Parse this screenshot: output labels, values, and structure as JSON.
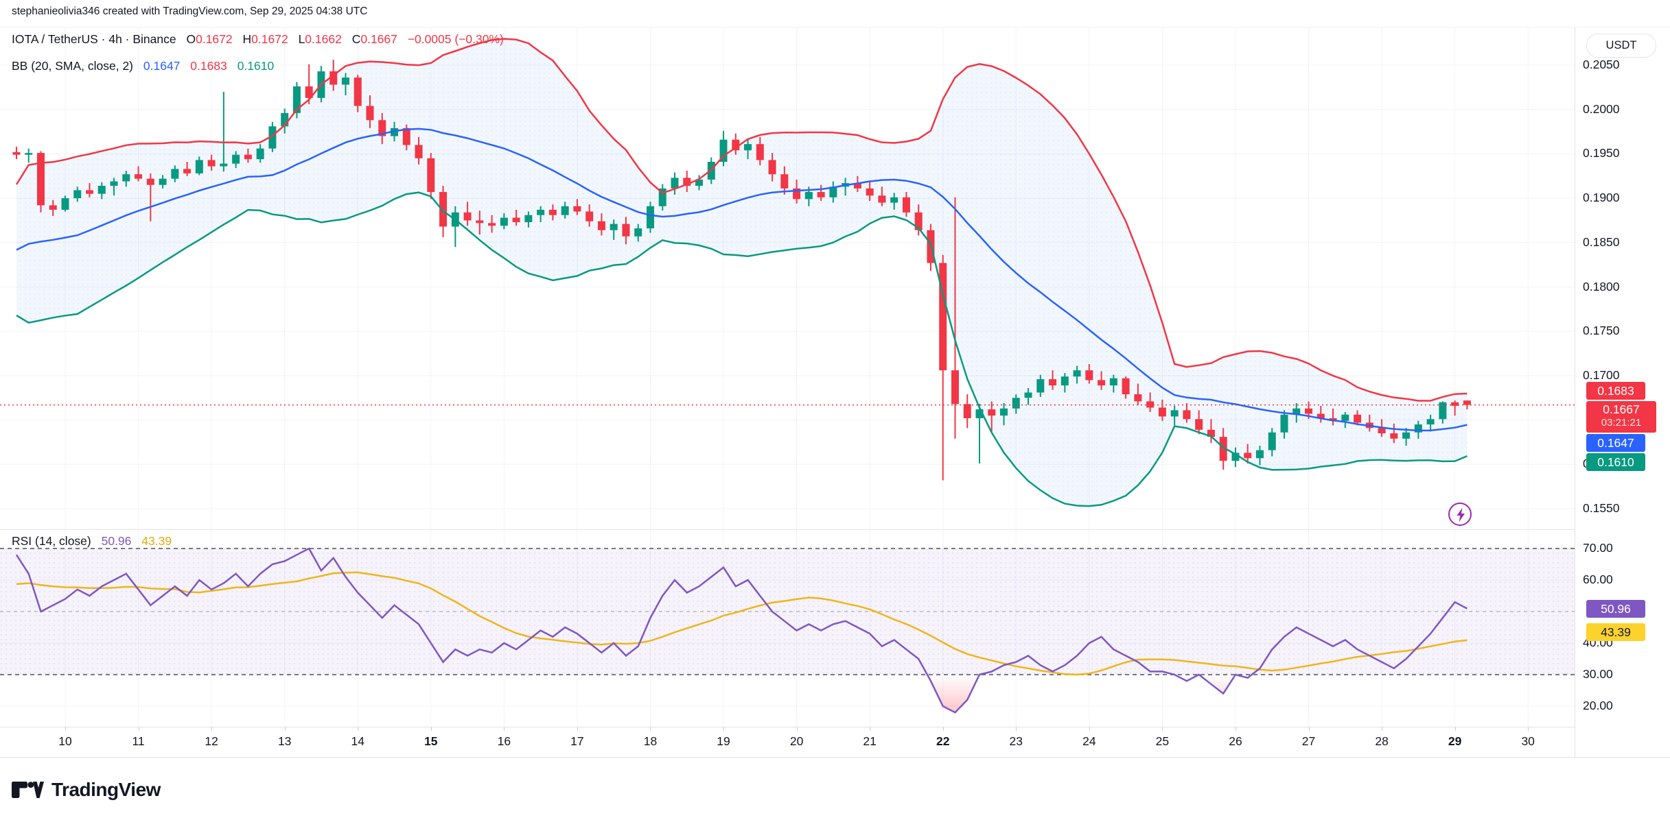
{
  "credit": "stephanieolivia346 created with TradingView.com, Sep 29, 2025 04:38 UTC",
  "header": {
    "title": "IOTA / TetherUS · 4h · Binance",
    "o_label": "O",
    "o": "0.1672",
    "h_label": "H",
    "h": "0.1672",
    "l_label": "L",
    "l": "0.1662",
    "c_label": "C",
    "c": "0.1667",
    "change": "−0.0005 (−0.30%)"
  },
  "indicator": {
    "name": "BB (20, SMA, close, 2)",
    "basis": "0.1647",
    "upper": "0.1683",
    "lower": "0.1610"
  },
  "rsi_legend": {
    "name": "RSI (14, close)",
    "value": "50.96",
    "ma": "43.39"
  },
  "logo": {
    "text": "TradingView"
  },
  "axis": {
    "currency": "USDT",
    "price_ticks": [
      {
        "label": "0.2050",
        "value": 0.205
      },
      {
        "label": "0.2000",
        "value": 0.2
      },
      {
        "label": "0.1950",
        "value": 0.195
      },
      {
        "label": "0.1900",
        "value": 0.19
      },
      {
        "label": "0.1850",
        "value": 0.185
      },
      {
        "label": "0.1800",
        "value": 0.18
      },
      {
        "label": "0.1750",
        "value": 0.175
      },
      {
        "label": "0.1700",
        "value": 0.17
      },
      {
        "label": "0.1600",
        "value": 0.16
      },
      {
        "label": "0.1550",
        "value": 0.155
      }
    ],
    "time_ticks": [
      {
        "label": "10",
        "bold": false
      },
      {
        "label": "11",
        "bold": false
      },
      {
        "label": "12",
        "bold": false
      },
      {
        "label": "13",
        "bold": false
      },
      {
        "label": "14",
        "bold": false
      },
      {
        "label": "15",
        "bold": true
      },
      {
        "label": "16",
        "bold": false
      },
      {
        "label": "17",
        "bold": false
      },
      {
        "label": "18",
        "bold": false
      },
      {
        "label": "19",
        "bold": false
      },
      {
        "label": "20",
        "bold": false
      },
      {
        "label": "21",
        "bold": false
      },
      {
        "label": "22",
        "bold": true
      },
      {
        "label": "23",
        "bold": false
      },
      {
        "label": "24",
        "bold": false
      },
      {
        "label": "25",
        "bold": false
      },
      {
        "label": "26",
        "bold": false
      },
      {
        "label": "27",
        "bold": false
      },
      {
        "label": "28",
        "bold": false
      },
      {
        "label": "29",
        "bold": true
      },
      {
        "label": "30",
        "bold": false
      }
    ],
    "badges": {
      "upper": {
        "label": "0.1683",
        "value": 0.1683
      },
      "last": {
        "price": "0.1667",
        "value": 0.1667,
        "countdown": "03:21:21"
      },
      "basis": {
        "label": "0.1647",
        "value": 0.1647
      },
      "lower": {
        "label": "0.1610",
        "value": 0.161
      }
    }
  },
  "rsi_axis": {
    "ticks": [
      {
        "label": "70.00",
        "value": 70
      },
      {
        "label": "60.00",
        "value": 60
      },
      {
        "label": "40.00",
        "value": 40
      },
      {
        "label": "30.00",
        "value": 30
      },
      {
        "label": "20.00",
        "value": 20
      }
    ],
    "badges": {
      "value": {
        "label": "50.96",
        "num": 50.96
      },
      "ma": {
        "label": "43.39",
        "num": 43.39
      }
    }
  },
  "colors": {
    "up": "#089981",
    "down": "#F23645",
    "basis": "#2962FF",
    "upper_band": "#F23645",
    "lower_band": "#089981",
    "bb_fill": "rgba(33,119,244,0.06)",
    "rsi_line": "#7E57C2",
    "rsi_ma": "#F0B518",
    "rsi_fill": "rgba(126,87,194,0.07)",
    "badge_purple": "#7E57C2",
    "badge_yellow": "#FCD32D",
    "grid": "#F0F3FA",
    "border": "#E0E3EB",
    "text": "#131722",
    "bolt": "#9C27B0",
    "oversold": "#F7525F"
  },
  "chart_data": {
    "type": "candlestick",
    "title": "IOTA / TetherUS · 4h · Binance",
    "price_scale": 0.0001,
    "x_axis": {
      "unit": "day of September 2025",
      "labels": [
        "10",
        "11",
        "12",
        "13",
        "14",
        "15",
        "16",
        "17",
        "18",
        "19",
        "20",
        "21",
        "22",
        "23",
        "24",
        "25",
        "26",
        "27",
        "28",
        "29",
        "30"
      ],
      "bold_labels": [
        "15",
        "22",
        "29"
      ]
    },
    "panes": [
      {
        "name": "price",
        "type": "candlestick_with_bollinger",
        "ylim": [
          0.1527,
          0.2099
        ],
        "yticks": [
          0.205,
          0.2,
          0.195,
          0.19,
          0.185,
          0.18,
          0.175,
          0.17,
          0.165,
          0.16,
          0.155
        ],
        "last_price": 0.1667,
        "candles_per_day": 6,
        "tick_anchor_index": 4,
        "bb": {
          "length": 20,
          "source": "close",
          "mult": 2,
          "basis_last": 0.1647,
          "upper_last": 0.1683,
          "lower_last": 0.161
        },
        "pre_closes": [
          1796,
          1801,
          1807,
          1813,
          1819,
          1825,
          1831,
          1837,
          1843,
          1849,
          1855,
          1861,
          1867,
          1873
        ],
        "candles": [
          [
            1952,
            1958,
            1944,
            1949
          ],
          [
            1949,
            1956,
            1940,
            1951
          ],
          [
            1951,
            1953,
            1884,
            1892
          ],
          [
            1892,
            1898,
            1880,
            1887
          ],
          [
            1887,
            1903,
            1885,
            1900
          ],
          [
            1900,
            1913,
            1896,
            1909
          ],
          [
            1909,
            1917,
            1901,
            1905
          ],
          [
            1905,
            1918,
            1899,
            1914
          ],
          [
            1914,
            1923,
            1903,
            1919
          ],
          [
            1919,
            1931,
            1913,
            1927
          ],
          [
            1927,
            1936,
            1919,
            1922
          ],
          [
            1922,
            1928,
            1874,
            1915
          ],
          [
            1915,
            1926,
            1911,
            1922
          ],
          [
            1922,
            1937,
            1918,
            1933
          ],
          [
            1933,
            1941,
            1925,
            1928
          ],
          [
            1928,
            1947,
            1926,
            1943
          ],
          [
            1943,
            1949,
            1931,
            1936
          ],
          [
            1936,
            2020,
            1930,
            1939
          ],
          [
            1939,
            1953,
            1934,
            1949
          ],
          [
            1949,
            1956,
            1940,
            1944
          ],
          [
            1944,
            1961,
            1940,
            1956
          ],
          [
            1956,
            1986,
            1952,
            1981
          ],
          [
            1981,
            2001,
            1973,
            1996
          ],
          [
            1996,
            2031,
            1990,
            2026
          ],
          [
            2026,
            2051,
            2006,
            2013
          ],
          [
            2013,
            2049,
            2008,
            2043
          ],
          [
            2043,
            2056,
            2021,
            2028
          ],
          [
            2028,
            2041,
            2016,
            2036
          ],
          [
            2036,
            2039,
            1997,
            2004
          ],
          [
            2004,
            2016,
            1979,
            1988
          ],
          [
            1988,
            1996,
            1961,
            1970
          ],
          [
            1970,
            1986,
            1964,
            1979
          ],
          [
            1979,
            1983,
            1954,
            1960
          ],
          [
            1960,
            1969,
            1938,
            1945
          ],
          [
            1945,
            1951,
            1899,
            1907
          ],
          [
            1907,
            1914,
            1856,
            1868
          ],
          [
            1868,
            1891,
            1845,
            1884
          ],
          [
            1884,
            1896,
            1869,
            1875
          ],
          [
            1875,
            1886,
            1859,
            1872
          ],
          [
            1872,
            1881,
            1861,
            1869
          ],
          [
            1869,
            1883,
            1865,
            1878
          ],
          [
            1878,
            1887,
            1869,
            1873
          ],
          [
            1873,
            1885,
            1867,
            1881
          ],
          [
            1881,
            1891,
            1873,
            1887
          ],
          [
            1887,
            1893,
            1875,
            1881
          ],
          [
            1881,
            1896,
            1877,
            1891
          ],
          [
            1891,
            1899,
            1881,
            1885
          ],
          [
            1885,
            1893,
            1868,
            1874
          ],
          [
            1874,
            1883,
            1858,
            1864
          ],
          [
            1864,
            1876,
            1853,
            1871
          ],
          [
            1871,
            1879,
            1848,
            1857
          ],
          [
            1857,
            1871,
            1851,
            1866
          ],
          [
            1866,
            1896,
            1861,
            1891
          ],
          [
            1891,
            1916,
            1886,
            1911
          ],
          [
            1911,
            1929,
            1904,
            1923
          ],
          [
            1923,
            1931,
            1907,
            1914
          ],
          [
            1914,
            1926,
            1909,
            1921
          ],
          [
            1921,
            1946,
            1916,
            1941
          ],
          [
            1941,
            1976,
            1936,
            1966
          ],
          [
            1966,
            1973,
            1949,
            1954
          ],
          [
            1954,
            1966,
            1944,
            1961
          ],
          [
            1961,
            1969,
            1937,
            1943
          ],
          [
            1943,
            1951,
            1919,
            1927
          ],
          [
            1927,
            1936,
            1904,
            1911
          ],
          [
            1911,
            1921,
            1894,
            1899
          ],
          [
            1899,
            1913,
            1891,
            1907
          ],
          [
            1907,
            1915,
            1897,
            1901
          ],
          [
            1901,
            1919,
            1895,
            1913
          ],
          [
            1913,
            1923,
            1903,
            1917
          ],
          [
            1917,
            1925,
            1907,
            1911
          ],
          [
            1911,
            1919,
            1897,
            1903
          ],
          [
            1903,
            1913,
            1891,
            1895
          ],
          [
            1895,
            1906,
            1887,
            1901
          ],
          [
            1901,
            1907,
            1879,
            1884
          ],
          [
            1884,
            1893,
            1858,
            1864
          ],
          [
            1864,
            1871,
            1818,
            1827
          ],
          [
            1827,
            1836,
            1582,
            1706
          ],
          [
            1706,
            1901,
            1629,
            1668
          ],
          [
            1668,
            1679,
            1641,
            1652
          ],
          [
            1652,
            1668,
            1601,
            1662
          ],
          [
            1662,
            1671,
            1637,
            1655
          ],
          [
            1655,
            1669,
            1644,
            1663
          ],
          [
            1663,
            1679,
            1657,
            1675
          ],
          [
            1675,
            1686,
            1667,
            1681
          ],
          [
            1681,
            1701,
            1676,
            1696
          ],
          [
            1696,
            1706,
            1684,
            1689
          ],
          [
            1689,
            1703,
            1681,
            1699
          ],
          [
            1699,
            1711,
            1691,
            1706
          ],
          [
            1706,
            1713,
            1691,
            1695
          ],
          [
            1695,
            1705,
            1684,
            1689
          ],
          [
            1689,
            1701,
            1681,
            1697
          ],
          [
            1697,
            1699,
            1674,
            1679
          ],
          [
            1679,
            1691,
            1667,
            1671
          ],
          [
            1671,
            1681,
            1659,
            1664
          ],
          [
            1664,
            1673,
            1649,
            1654
          ],
          [
            1654,
            1666,
            1644,
            1661
          ],
          [
            1661,
            1669,
            1647,
            1651
          ],
          [
            1651,
            1661,
            1634,
            1639
          ],
          [
            1639,
            1651,
            1624,
            1631
          ],
          [
            1631,
            1641,
            1594,
            1604
          ],
          [
            1604,
            1619,
            1597,
            1613
          ],
          [
            1613,
            1623,
            1601,
            1607
          ],
          [
            1607,
            1621,
            1599,
            1616
          ],
          [
            1616,
            1641,
            1609,
            1636
          ],
          [
            1636,
            1661,
            1629,
            1656
          ],
          [
            1656,
            1669,
            1647,
            1663
          ],
          [
            1663,
            1671,
            1651,
            1657
          ],
          [
            1657,
            1666,
            1647,
            1652
          ],
          [
            1652,
            1663,
            1644,
            1649
          ],
          [
            1649,
            1659,
            1641,
            1656
          ],
          [
            1656,
            1661,
            1644,
            1647
          ],
          [
            1647,
            1656,
            1637,
            1641
          ],
          [
            1641,
            1651,
            1631,
            1635
          ],
          [
            1635,
            1646,
            1624,
            1629
          ],
          [
            1629,
            1641,
            1621,
            1636
          ],
          [
            1636,
            1649,
            1629,
            1645
          ],
          [
            1645,
            1656,
            1637,
            1651
          ],
          [
            1651,
            1671,
            1646,
            1670
          ],
          [
            1670,
            1672,
            1655,
            1666
          ],
          [
            1672,
            1672,
            1662,
            1667
          ]
        ]
      },
      {
        "name": "rsi",
        "type": "line",
        "series_name": "RSI (14, close)",
        "ylim": [
          13.5,
          76
        ],
        "yticks": [
          70,
          60,
          40,
          30,
          20
        ],
        "levels": [
          70,
          50,
          30
        ],
        "band": [
          30,
          70
        ],
        "ma_period": 14,
        "ma_warmup": 58,
        "last": 50.96,
        "ma_last": 43.39,
        "values": [
          68,
          62,
          50,
          52,
          54,
          57,
          55,
          58,
          60,
          62,
          57,
          52,
          55,
          58,
          55,
          60,
          57,
          59,
          62,
          58,
          62,
          65,
          66,
          68,
          70,
          63,
          67,
          61,
          56,
          52,
          48,
          52,
          49,
          46,
          40,
          34,
          38,
          36,
          38,
          37,
          40,
          38,
          41,
          44,
          42,
          45,
          43,
          40,
          37,
          40,
          36,
          39,
          48,
          55,
          60,
          56,
          58,
          61,
          64,
          58,
          60,
          55,
          50,
          47,
          44,
          46,
          44,
          46,
          47,
          45,
          43,
          39,
          41,
          38,
          35,
          28,
          20,
          18,
          22,
          30,
          31,
          33,
          34,
          36,
          33,
          31,
          33,
          36,
          40,
          42,
          38,
          36,
          34,
          31,
          31,
          30,
          28,
          30,
          27,
          24,
          30,
          29,
          32,
          38,
          42,
          45,
          43,
          41,
          39,
          41,
          38,
          36,
          34,
          32,
          35,
          39,
          43,
          48,
          53,
          50.96
        ]
      }
    ]
  }
}
